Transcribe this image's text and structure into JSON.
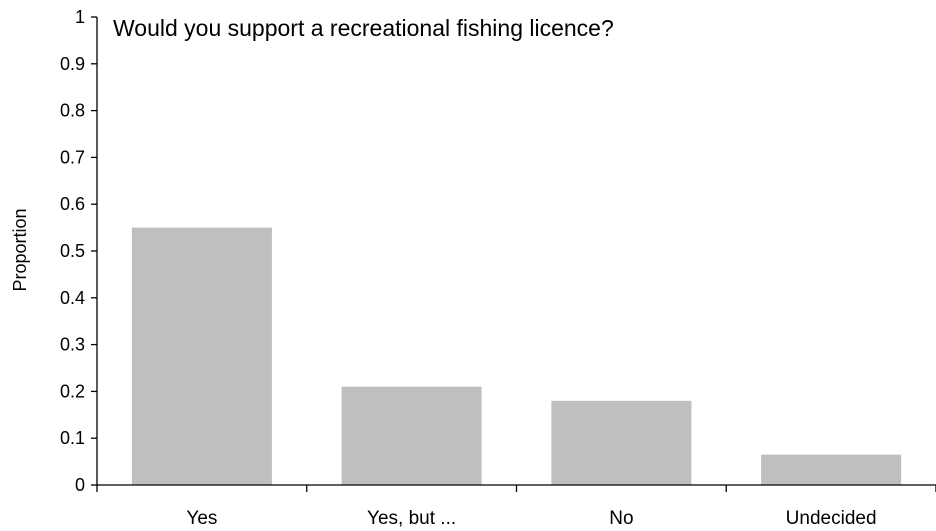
{
  "chart_data": {
    "type": "bar",
    "title": "Would you support a recreational fishing licence?",
    "xlabel": "",
    "ylabel": "Proportion",
    "categories": [
      "Yes",
      "Yes, but ...",
      "No",
      "Undecided"
    ],
    "values": [
      0.55,
      0.21,
      0.18,
      0.065
    ],
    "ylim": [
      0,
      1
    ],
    "yticks": [
      "0",
      "0.1",
      "0.2",
      "0.3",
      "0.4",
      "0.5",
      "0.6",
      "0.7",
      "0.8",
      "0.9",
      "1"
    ],
    "grid": false,
    "legend": "none",
    "bar_color": "#BFBFBF",
    "axis_color": "#000000"
  }
}
